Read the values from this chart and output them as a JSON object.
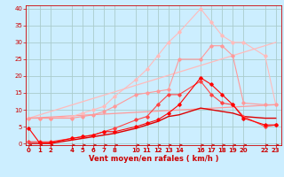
{
  "xlabel": "Vent moyen/en rafales ( km/h )",
  "background_color": "#cceeff",
  "grid_color": "#aacccc",
  "x_ticks": [
    0,
    1,
    2,
    4,
    5,
    6,
    7,
    8,
    10,
    11,
    12,
    13,
    14,
    16,
    17,
    18,
    19,
    20,
    22,
    23
  ],
  "x_tick_labels": [
    "0",
    "1",
    "2",
    "4",
    "5",
    "6",
    "7",
    "8",
    "10",
    "11",
    "12",
    "13",
    "14",
    "16",
    "17",
    "18",
    "19",
    "20",
    "22",
    "23"
  ],
  "yticks": [
    0,
    5,
    10,
    15,
    20,
    25,
    30,
    35,
    40
  ],
  "ylim": [
    -0.5,
    41
  ],
  "xlim": [
    -0.3,
    23.5
  ],
  "lines": [
    {
      "x": [
        0,
        1,
        2,
        4,
        5,
        6,
        7,
        8,
        10,
        11,
        12,
        13,
        14,
        16,
        17,
        18,
        19,
        20,
        22,
        23
      ],
      "y": [
        7.5,
        7.5,
        7.5,
        8.0,
        9.0,
        10.0,
        11.0,
        14.0,
        19.0,
        22.0,
        26.0,
        30.0,
        33.0,
        40.0,
        36.0,
        32.0,
        30.0,
        30.0,
        26.0,
        11.5
      ],
      "color": "#ffbbbb",
      "linewidth": 0.8,
      "marker": "D",
      "markersize": 1.8,
      "alpha": 1.0
    },
    {
      "x": [
        0,
        23
      ],
      "y": [
        7.5,
        30.0
      ],
      "color": "#ffbbbb",
      "linewidth": 0.9,
      "marker": null,
      "markersize": 0,
      "alpha": 1.0
    },
    {
      "x": [
        0,
        1,
        2,
        4,
        5,
        6,
        7,
        8,
        10,
        11,
        12,
        13,
        14,
        16,
        17,
        18,
        19,
        20,
        22,
        23
      ],
      "y": [
        7.5,
        7.5,
        7.5,
        7.5,
        8.0,
        8.5,
        9.5,
        11.0,
        14.5,
        15.0,
        15.5,
        16.0,
        25.0,
        25.0,
        29.0,
        29.0,
        26.0,
        12.0,
        11.5,
        11.5
      ],
      "color": "#ff9999",
      "linewidth": 0.8,
      "marker": "D",
      "markersize": 1.8,
      "alpha": 1.0
    },
    {
      "x": [
        0,
        23
      ],
      "y": [
        7.5,
        11.5
      ],
      "color": "#ff9999",
      "linewidth": 0.9,
      "marker": null,
      "markersize": 0,
      "alpha": 1.0
    },
    {
      "x": [
        0,
        1,
        2,
        4,
        5,
        6,
        7,
        8,
        10,
        11,
        12,
        13,
        14,
        16,
        17,
        18,
        19,
        20,
        22,
        23
      ],
      "y": [
        0.5,
        0.5,
        0.5,
        1.5,
        2.0,
        2.5,
        3.5,
        4.5,
        7.0,
        8.0,
        11.5,
        14.5,
        14.5,
        18.5,
        14.5,
        12.0,
        11.5,
        8.0,
        5.0,
        5.5
      ],
      "color": "#ff4444",
      "linewidth": 0.8,
      "marker": "D",
      "markersize": 1.8,
      "alpha": 1.0
    },
    {
      "x": [
        0,
        1,
        2,
        4,
        5,
        6,
        7,
        8,
        10,
        11,
        12,
        13,
        14,
        16,
        17,
        18,
        19,
        20,
        22,
        23
      ],
      "y": [
        0,
        0,
        0,
        1.0,
        1.5,
        2.0,
        2.5,
        3.0,
        4.5,
        5.5,
        6.5,
        8.0,
        8.5,
        10.5,
        10.0,
        9.5,
        9.0,
        8.0,
        7.5,
        7.5
      ],
      "color": "#dd0000",
      "linewidth": 1.0,
      "marker": null,
      "markersize": 0,
      "alpha": 1.0
    },
    {
      "x": [
        0,
        1,
        2,
        4,
        5,
        6,
        7,
        8,
        10,
        11,
        12,
        13,
        14,
        16,
        17,
        18,
        19,
        20,
        22,
        23
      ],
      "y": [
        4.5,
        0.2,
        0.2,
        1.5,
        2.0,
        2.5,
        3.5,
        3.5,
        5.0,
        6.0,
        7.0,
        9.0,
        11.5,
        19.5,
        17.5,
        14.5,
        11.5,
        7.5,
        5.5,
        5.5
      ],
      "color": "#ff0000",
      "linewidth": 0.8,
      "marker": "D",
      "markersize": 1.8,
      "alpha": 1.0
    }
  ],
  "wind_arrows": {
    "y": -0.5,
    "x": [
      0,
      1,
      2,
      4,
      5,
      6,
      7,
      8,
      10,
      11,
      12,
      13,
      14,
      16,
      17,
      18,
      19,
      20,
      22,
      23
    ],
    "color": "#cc0000"
  }
}
